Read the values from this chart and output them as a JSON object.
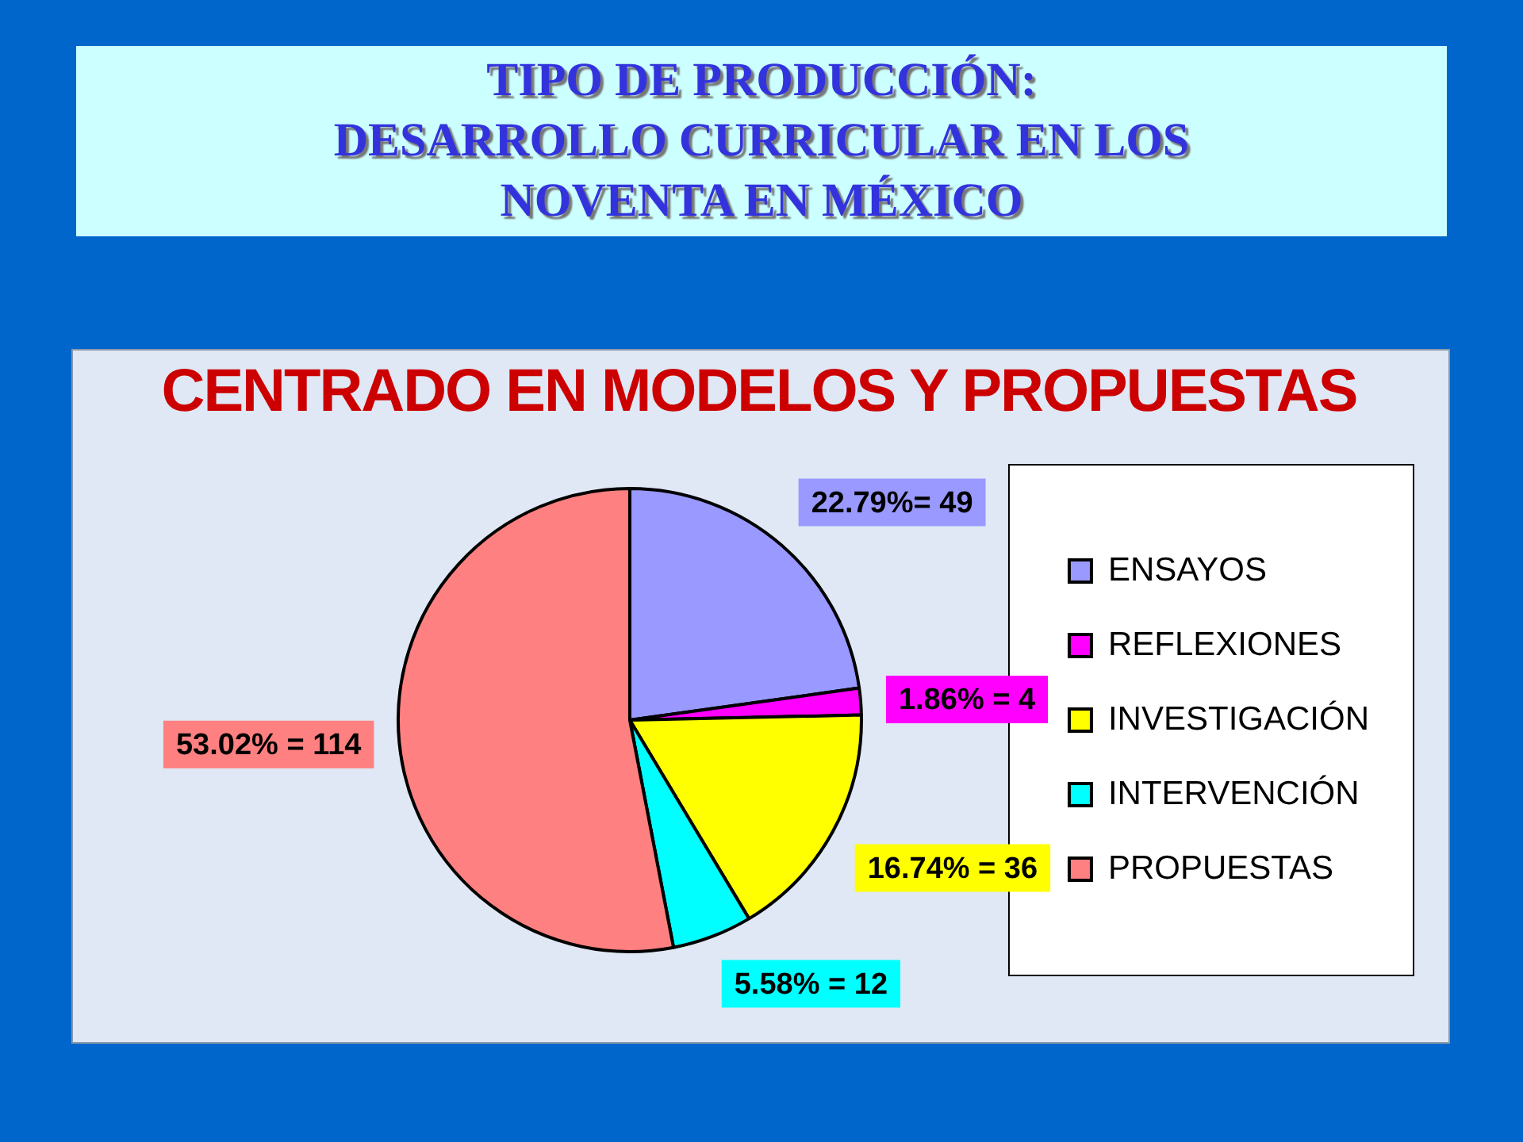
{
  "chart_data": {
    "type": "pie",
    "title": "TIPO DE PRODUCCIÓN:\nDESARROLLO CURRICULAR EN LOS\nNOVENTA EN MÉXICO",
    "annotations": [
      "CENTRADO EN MODELOS Y PROPUESTAS"
    ],
    "categories": [
      "ENSAYOS",
      "REFLEXIONES",
      "INVESTIGACIÓN",
      "INTERVENCIÓN",
      "PROPUESTAS"
    ],
    "values": [
      49,
      4,
      36,
      12,
      114
    ],
    "colors": [
      "#9999ff",
      "#ff00ff",
      "#ffff00",
      "#00ffff",
      "#ff8080"
    ],
    "value_labels": [
      "22.79%= 49",
      "1.86% = 4",
      "16.74% = 36",
      "5.58% = 12",
      "53.02% = 114"
    ],
    "legend": "right"
  }
}
